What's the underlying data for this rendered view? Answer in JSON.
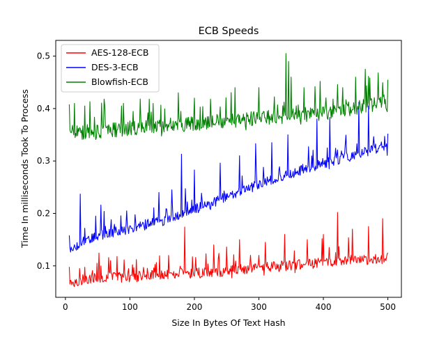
{
  "chart_data": {
    "type": "line",
    "title": "ECB Speeds",
    "xlabel": "Size In Bytes Of Text Hash",
    "ylabel": "Time In milliseconds Took To Process",
    "xlim": [
      -15,
      521
    ],
    "ylim": [
      0.04,
      0.53
    ],
    "xticks": [
      0,
      100,
      200,
      300,
      400,
      500
    ],
    "xtick_labels": [
      "0",
      "100",
      "200",
      "300",
      "400",
      "500"
    ],
    "yticks": [
      0.1,
      0.2,
      0.3,
      0.4,
      0.5
    ],
    "ytick_labels": [
      "0.1",
      "0.2",
      "0.3",
      "0.4",
      "0.5"
    ],
    "grid": false,
    "legend_position": "top-left",
    "series": [
      {
        "name": "AES-128-ECB",
        "color": "#ff0000",
        "trend": {
          "x": [
            6,
            20,
            50,
            100,
            150,
            200,
            250,
            300,
            350,
            400,
            450,
            500
          ],
          "y": [
            0.068,
            0.07,
            0.077,
            0.077,
            0.083,
            0.085,
            0.089,
            0.095,
            0.1,
            0.105,
            0.11,
            0.113
          ]
        },
        "peaks": {
          "x": [
            6,
            22,
            55,
            80,
            110,
            160,
            185,
            230,
            250,
            270,
            310,
            340,
            375,
            400,
            422,
            445,
            470,
            492,
            500
          ],
          "y": [
            0.098,
            0.095,
            0.1,
            0.118,
            0.112,
            0.12,
            0.174,
            0.14,
            0.136,
            0.15,
            0.145,
            0.16,
            0.15,
            0.16,
            0.202,
            0.17,
            0.175,
            0.19,
            0.125
          ]
        }
      },
      {
        "name": "DES-3-ECB",
        "color": "#0000ff",
        "trend": {
          "x": [
            6,
            20,
            50,
            100,
            150,
            200,
            250,
            300,
            350,
            400,
            450,
            500
          ],
          "y": [
            0.13,
            0.14,
            0.158,
            0.17,
            0.185,
            0.208,
            0.23,
            0.255,
            0.275,
            0.295,
            0.31,
            0.33
          ]
        },
        "peaks": {
          "x": [
            6,
            23,
            55,
            95,
            145,
            165,
            180,
            200,
            240,
            270,
            295,
            320,
            345,
            390,
            410,
            455,
            470,
            500
          ],
          "y": [
            0.158,
            0.237,
            0.216,
            0.205,
            0.24,
            0.245,
            0.313,
            0.283,
            0.296,
            0.31,
            0.333,
            0.335,
            0.35,
            0.38,
            0.383,
            0.412,
            0.405,
            0.352
          ]
        }
      },
      {
        "name": "Blowfish-ECB",
        "color": "#008000",
        "trend": {
          "x": [
            6,
            20,
            50,
            100,
            150,
            200,
            250,
            300,
            350,
            400,
            450,
            500
          ],
          "y": [
            0.365,
            0.352,
            0.355,
            0.36,
            0.365,
            0.37,
            0.375,
            0.38,
            0.385,
            0.39,
            0.4,
            0.41
          ]
        },
        "peaks": {
          "x": [
            6,
            14,
            30,
            60,
            90,
            130,
            175,
            200,
            225,
            263,
            300,
            342,
            346,
            350,
            370,
            395,
            430,
            450,
            465,
            485,
            500
          ],
          "y": [
            0.408,
            0.41,
            0.405,
            0.418,
            0.41,
            0.418,
            0.43,
            0.42,
            0.418,
            0.44,
            0.44,
            0.505,
            0.49,
            0.46,
            0.44,
            0.452,
            0.44,
            0.46,
            0.475,
            0.468,
            0.455
          ]
        }
      }
    ]
  }
}
